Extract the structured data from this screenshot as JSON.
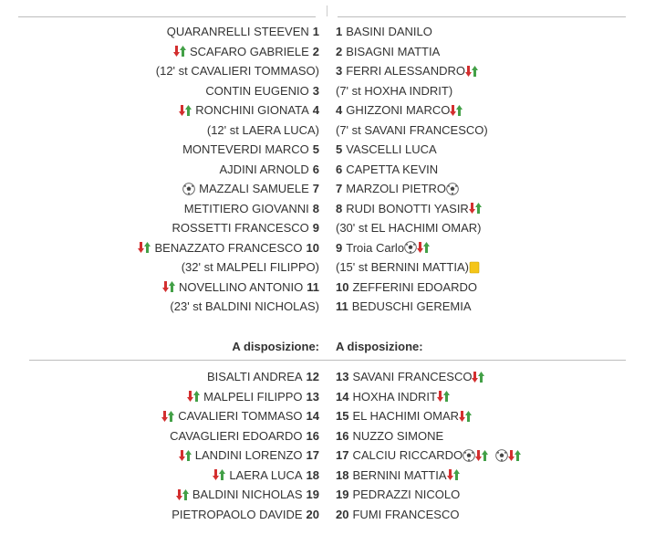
{
  "starters": [
    {
      "left": {
        "name": "QUARANRELLI STEEVEN",
        "num": "1",
        "icons": []
      },
      "right": {
        "num": "1",
        "name": "BASINI DANILO",
        "icons": []
      }
    },
    {
      "left": {
        "name": "SCAFARO GABRIELE",
        "num": "2",
        "icons_before": [
          "sub-out-icon"
        ]
      },
      "right": {
        "num": "2",
        "name": "BISAGNI MATTIA",
        "icons": []
      }
    },
    {
      "left": {
        "name": "(12' st CAVALIERI TOMMASO)",
        "num": ""
      },
      "right": {
        "num": "3",
        "name": "FERRI ALESSANDRO",
        "icons": [
          "sub-out-icon"
        ]
      }
    },
    {
      "left": {
        "name": "CONTIN EUGENIO",
        "num": "3"
      },
      "right": {
        "num": "",
        "name": "(7' st HOXHA INDRIT)"
      }
    },
    {
      "left": {
        "name": "RONCHINI GIONATA",
        "num": "4",
        "icons_before": [
          "sub-out-icon"
        ]
      },
      "right": {
        "num": "4",
        "name": "GHIZZONI MARCO",
        "icons": [
          "sub-out-icon"
        ]
      }
    },
    {
      "left": {
        "name": "(12' st LAERA LUCA)",
        "num": ""
      },
      "right": {
        "num": "",
        "name": "(7' st SAVANI FRANCESCO)"
      }
    },
    {
      "left": {
        "name": "MONTEVERDI MARCO",
        "num": "5"
      },
      "right": {
        "num": "5",
        "name": "VASCELLI LUCA"
      }
    },
    {
      "left": {
        "name": "AJDINI ARNOLD",
        "num": "6"
      },
      "right": {
        "num": "6",
        "name": "CAPETTA KEVIN"
      }
    },
    {
      "left": {
        "name": "MAZZALI SAMUELE",
        "num": "7",
        "icons_before": [
          "goal-ball-icon"
        ]
      },
      "right": {
        "num": "7",
        "name": "MARZOLI PIETRO",
        "icons": [
          "goal-ball-icon"
        ]
      }
    },
    {
      "left": {
        "name": "METITIERO GIOVANNI",
        "num": "8"
      },
      "right": {
        "num": "8",
        "name": "RUDI BONOTTI YASIR",
        "icons": [
          "sub-out-icon"
        ]
      }
    },
    {
      "left": {
        "name": "ROSSETTI FRANCESCO",
        "num": "9"
      },
      "right": {
        "num": "",
        "name": "(30' st EL HACHIMI OMAR)"
      }
    },
    {
      "left": {
        "name": "BENAZZATO FRANCESCO",
        "num": "10",
        "icons_before": [
          "sub-out-icon"
        ]
      },
      "right": {
        "num": "9",
        "name": "Troia Carlo",
        "icons": [
          "goal-ball-icon",
          "sub-out-icon"
        ]
      }
    },
    {
      "left": {
        "name": "(32' st MALPELI FILIPPO)",
        "num": ""
      },
      "right": {
        "num": "",
        "name": "(15' st BERNINI MATTIA)",
        "icons": [
          "yellow-card-icon"
        ]
      }
    },
    {
      "left": {
        "name": "NOVELLINO ANTONIO",
        "num": "11",
        "icons_before": [
          "sub-out-icon"
        ]
      },
      "right": {
        "num": "10",
        "name": "ZEFFERINI EDOARDO"
      }
    },
    {
      "left": {
        "name": "(23' st BALDINI NICHOLAS)",
        "num": ""
      },
      "right": {
        "num": "11",
        "name": "BEDUSCHI GEREMIA"
      }
    }
  ],
  "bench_header": {
    "left": "A disposizione:",
    "right": "A disposizione:"
  },
  "bench": [
    {
      "left": {
        "name": "BISALTI ANDREA",
        "num": "12"
      },
      "right": {
        "num": "13",
        "name": "SAVANI FRANCESCO",
        "icons": [
          "sub-in-icon"
        ]
      }
    },
    {
      "left": {
        "name": "MALPELI FILIPPO",
        "num": "13",
        "icons_before": [
          "sub-in-icon"
        ]
      },
      "right": {
        "num": "14",
        "name": "HOXHA INDRIT",
        "icons": [
          "sub-in-icon"
        ]
      }
    },
    {
      "left": {
        "name": "CAVALIERI TOMMASO",
        "num": "14",
        "icons_before": [
          "sub-in-icon"
        ]
      },
      "right": {
        "num": "15",
        "name": "EL HACHIMI OMAR",
        "icons": [
          "sub-in-icon"
        ]
      }
    },
    {
      "left": {
        "name": "CAVAGLIERI EDOARDO",
        "num": "16"
      },
      "right": {
        "num": "16",
        "name": "NUZZO SIMONE"
      }
    },
    {
      "left": {
        "name": "LANDINI LORENZO",
        "num": "17",
        "icons_before": [
          "sub-in-icon"
        ]
      },
      "right": {
        "num": "17",
        "name": "CALCIU RICCARDO",
        "icons": [
          "goal-ball-icon",
          "sub-in-icon",
          "goal-ball-icon",
          "sub-in-icon"
        ]
      }
    },
    {
      "left": {
        "name": "LAERA LUCA",
        "num": "18",
        "icons_before": [
          "sub-in-icon"
        ]
      },
      "right": {
        "num": "18",
        "name": "BERNINI MATTIA",
        "icons": [
          "sub-in-icon"
        ]
      }
    },
    {
      "left": {
        "name": "BALDINI NICHOLAS",
        "num": "19",
        "icons_before": [
          "sub-in-icon"
        ]
      },
      "right": {
        "num": "19",
        "name": "PEDRAZZI NICOLO"
      }
    },
    {
      "left": {
        "name": "PIETROPAOLO DAVIDE",
        "num": "20"
      },
      "right": {
        "num": "20",
        "name": "FUMI FRANCESCO"
      }
    }
  ],
  "colors": {
    "text": "#333333",
    "divider": "#bdbdbd",
    "arrow_red": "#d32f2f",
    "arrow_green": "#43a047",
    "card_yellow": "#f5c518"
  }
}
